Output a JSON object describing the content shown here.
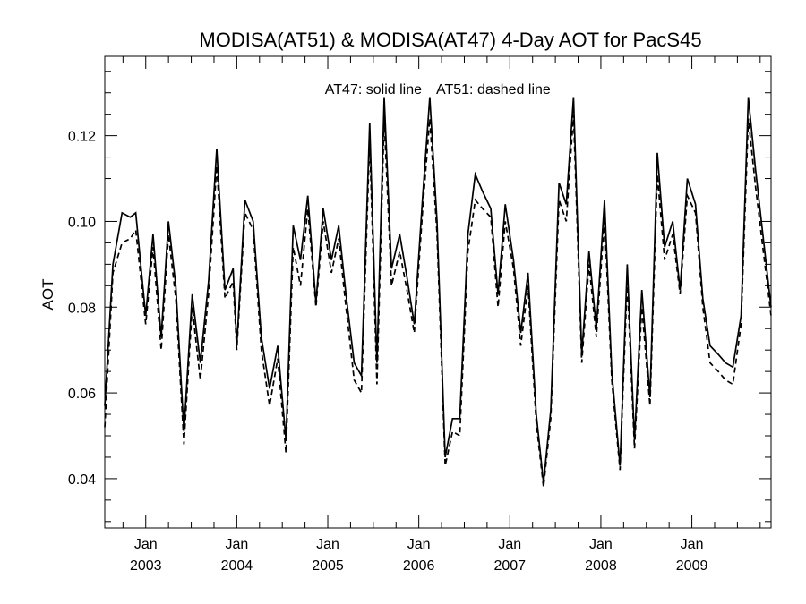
{
  "chart_data": {
    "type": "line",
    "title": "MODISA(AT51) & MODISA(AT47) 4-Day AOT for PacS45",
    "ylabel": "AOT",
    "xlabel": "",
    "annotation": {
      "solid": "AT47: solid line",
      "dashed": "AT51: dashed line"
    },
    "x_unit": "date (fractional year)",
    "xlim": [
      2002.55,
      2009.87
    ],
    "ylim": [
      0.0285,
      0.1385
    ],
    "y_ticks": [
      0.04,
      0.06,
      0.08,
      0.1,
      0.12
    ],
    "y_tick_labels": [
      "0.04",
      "0.06",
      "0.08",
      "0.10",
      "0.12"
    ],
    "x_ticks": [
      {
        "month": "Jan",
        "year": "2003",
        "x": 2003.0
      },
      {
        "month": "Jan",
        "year": "2004",
        "x": 2004.0
      },
      {
        "month": "Jan",
        "year": "2005",
        "x": 2005.0
      },
      {
        "month": "Jan",
        "year": "2006",
        "x": 2006.0
      },
      {
        "month": "Jan",
        "year": "2007",
        "x": 2007.0
      },
      {
        "month": "Jan",
        "year": "2008",
        "x": 2008.0
      },
      {
        "month": "Jan",
        "year": "2009",
        "x": 2009.0
      }
    ],
    "series": [
      {
        "name": "AT47",
        "style": "solid",
        "color": "#000000",
        "points": [
          [
            2002.55,
            0.057
          ],
          [
            2002.64,
            0.09
          ],
          [
            2002.74,
            0.102
          ],
          [
            2002.83,
            0.101
          ],
          [
            2002.89,
            0.102
          ],
          [
            2003.0,
            0.078
          ],
          [
            2003.08,
            0.097
          ],
          [
            2003.17,
            0.073
          ],
          [
            2003.25,
            0.1
          ],
          [
            2003.33,
            0.085
          ],
          [
            2003.42,
            0.051
          ],
          [
            2003.51,
            0.083
          ],
          [
            2003.6,
            0.067
          ],
          [
            2003.69,
            0.086
          ],
          [
            2003.78,
            0.117
          ],
          [
            2003.87,
            0.084
          ],
          [
            2003.96,
            0.089
          ],
          [
            2004.0,
            0.071
          ],
          [
            2004.09,
            0.105
          ],
          [
            2004.18,
            0.1
          ],
          [
            2004.27,
            0.073
          ],
          [
            2004.36,
            0.061
          ],
          [
            2004.45,
            0.071
          ],
          [
            2004.54,
            0.049
          ],
          [
            2004.62,
            0.099
          ],
          [
            2004.7,
            0.091
          ],
          [
            2004.78,
            0.106
          ],
          [
            2004.87,
            0.081
          ],
          [
            2004.95,
            0.103
          ],
          [
            2005.04,
            0.091
          ],
          [
            2005.12,
            0.099
          ],
          [
            2005.2,
            0.083
          ],
          [
            2005.29,
            0.067
          ],
          [
            2005.37,
            0.064
          ],
          [
            2005.46,
            0.123
          ],
          [
            2005.54,
            0.067
          ],
          [
            2005.62,
            0.129
          ],
          [
            2005.7,
            0.089
          ],
          [
            2005.79,
            0.097
          ],
          [
            2005.87,
            0.087
          ],
          [
            2005.95,
            0.076
          ],
          [
            2006.04,
            0.105
          ],
          [
            2006.12,
            0.129
          ],
          [
            2006.2,
            0.1
          ],
          [
            2006.29,
            0.045
          ],
          [
            2006.37,
            0.054
          ],
          [
            2006.45,
            0.054
          ],
          [
            2006.54,
            0.097
          ],
          [
            2006.62,
            0.111
          ],
          [
            2006.7,
            0.107
          ],
          [
            2006.79,
            0.103
          ],
          [
            2006.87,
            0.083
          ],
          [
            2006.95,
            0.104
          ],
          [
            2007.04,
            0.091
          ],
          [
            2007.12,
            0.074
          ],
          [
            2007.2,
            0.088
          ],
          [
            2007.29,
            0.055
          ],
          [
            2007.37,
            0.039
          ],
          [
            2007.45,
            0.056
          ],
          [
            2007.54,
            0.109
          ],
          [
            2007.62,
            0.104
          ],
          [
            2007.7,
            0.129
          ],
          [
            2007.79,
            0.069
          ],
          [
            2007.87,
            0.093
          ],
          [
            2007.95,
            0.075
          ],
          [
            2008.04,
            0.105
          ],
          [
            2008.12,
            0.065
          ],
          [
            2008.21,
            0.043
          ],
          [
            2008.29,
            0.09
          ],
          [
            2008.37,
            0.049
          ],
          [
            2008.45,
            0.084
          ],
          [
            2008.54,
            0.059
          ],
          [
            2008.62,
            0.116
          ],
          [
            2008.7,
            0.094
          ],
          [
            2008.79,
            0.1
          ],
          [
            2008.87,
            0.084
          ],
          [
            2008.95,
            0.11
          ],
          [
            2009.04,
            0.104
          ],
          [
            2009.12,
            0.082
          ],
          [
            2009.2,
            0.071
          ],
          [
            2009.29,
            0.069
          ],
          [
            2009.37,
            0.067
          ],
          [
            2009.45,
            0.066
          ],
          [
            2009.54,
            0.078
          ],
          [
            2009.62,
            0.129
          ],
          [
            2009.7,
            0.112
          ],
          [
            2009.87,
            0.08
          ]
        ]
      },
      {
        "name": "AT51",
        "style": "dashed",
        "color": "#000000",
        "points": [
          [
            2002.55,
            0.052
          ],
          [
            2002.64,
            0.088
          ],
          [
            2002.74,
            0.095
          ],
          [
            2002.83,
            0.096
          ],
          [
            2002.89,
            0.098
          ],
          [
            2003.0,
            0.076
          ],
          [
            2003.08,
            0.094
          ],
          [
            2003.17,
            0.07
          ],
          [
            2003.25,
            0.097
          ],
          [
            2003.33,
            0.082
          ],
          [
            2003.42,
            0.048
          ],
          [
            2003.51,
            0.08
          ],
          [
            2003.6,
            0.063
          ],
          [
            2003.69,
            0.083
          ],
          [
            2003.78,
            0.113
          ],
          [
            2003.87,
            0.082
          ],
          [
            2003.96,
            0.086
          ],
          [
            2004.0,
            0.07
          ],
          [
            2004.09,
            0.102
          ],
          [
            2004.18,
            0.098
          ],
          [
            2004.27,
            0.07
          ],
          [
            2004.36,
            0.057
          ],
          [
            2004.45,
            0.068
          ],
          [
            2004.54,
            0.046
          ],
          [
            2004.62,
            0.094
          ],
          [
            2004.7,
            0.085
          ],
          [
            2004.78,
            0.103
          ],
          [
            2004.87,
            0.08
          ],
          [
            2004.95,
            0.1
          ],
          [
            2005.04,
            0.088
          ],
          [
            2005.12,
            0.096
          ],
          [
            2005.2,
            0.08
          ],
          [
            2005.29,
            0.063
          ],
          [
            2005.37,
            0.06
          ],
          [
            2005.46,
            0.119
          ],
          [
            2005.54,
            0.062
          ],
          [
            2005.62,
            0.124
          ],
          [
            2005.7,
            0.085
          ],
          [
            2005.79,
            0.093
          ],
          [
            2005.87,
            0.084
          ],
          [
            2005.95,
            0.074
          ],
          [
            2006.04,
            0.102
          ],
          [
            2006.12,
            0.124
          ],
          [
            2006.2,
            0.097
          ],
          [
            2006.29,
            0.043
          ],
          [
            2006.37,
            0.051
          ],
          [
            2006.45,
            0.05
          ],
          [
            2006.54,
            0.093
          ],
          [
            2006.62,
            0.105
          ],
          [
            2006.7,
            0.103
          ],
          [
            2006.79,
            0.101
          ],
          [
            2006.87,
            0.08
          ],
          [
            2006.95,
            0.1
          ],
          [
            2007.04,
            0.089
          ],
          [
            2007.12,
            0.071
          ],
          [
            2007.2,
            0.085
          ],
          [
            2007.29,
            0.053
          ],
          [
            2007.37,
            0.038
          ],
          [
            2007.45,
            0.054
          ],
          [
            2007.54,
            0.105
          ],
          [
            2007.62,
            0.1
          ],
          [
            2007.7,
            0.125
          ],
          [
            2007.79,
            0.067
          ],
          [
            2007.87,
            0.09
          ],
          [
            2007.95,
            0.073
          ],
          [
            2008.04,
            0.101
          ],
          [
            2008.12,
            0.063
          ],
          [
            2008.21,
            0.042
          ],
          [
            2008.29,
            0.086
          ],
          [
            2008.37,
            0.047
          ],
          [
            2008.45,
            0.08
          ],
          [
            2008.54,
            0.057
          ],
          [
            2008.62,
            0.111
          ],
          [
            2008.7,
            0.091
          ],
          [
            2008.79,
            0.097
          ],
          [
            2008.87,
            0.083
          ],
          [
            2008.95,
            0.106
          ],
          [
            2009.04,
            0.102
          ],
          [
            2009.12,
            0.08
          ],
          [
            2009.2,
            0.067
          ],
          [
            2009.29,
            0.065
          ],
          [
            2009.37,
            0.063
          ],
          [
            2009.45,
            0.062
          ],
          [
            2009.54,
            0.076
          ],
          [
            2009.62,
            0.124
          ],
          [
            2009.7,
            0.108
          ],
          [
            2009.87,
            0.078
          ]
        ]
      }
    ]
  }
}
